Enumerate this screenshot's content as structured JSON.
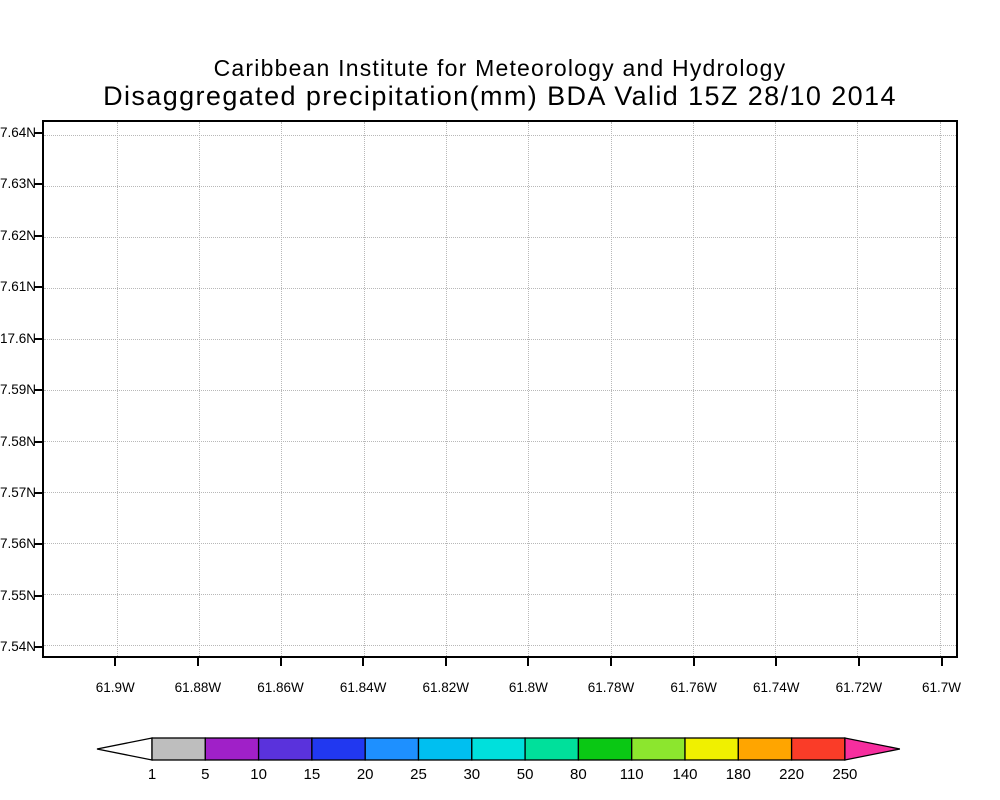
{
  "title": {
    "line1": "Caribbean Institute for Meteorology and Hydrology",
    "line2": "Disaggregated precipitation(mm) BDA Valid 15Z 28/10 2014"
  },
  "axes": {
    "y_tick_labels": [
      "7.64N",
      "7.63N",
      "7.62N",
      "7.61N",
      "17.6N",
      "7.59N",
      "7.58N",
      "7.57N",
      "7.56N",
      "7.55N",
      "7.54N"
    ],
    "x_tick_labels": [
      "61.9W",
      "61.88W",
      "61.86W",
      "61.84W",
      "61.82W",
      "61.8W",
      "61.78W",
      "61.76W",
      "61.74W",
      "61.72W",
      "61.7W"
    ]
  },
  "colorbar": {
    "boundary_labels": [
      "1",
      "5",
      "10",
      "15",
      "20",
      "25",
      "30",
      "50",
      "80",
      "110",
      "140",
      "180",
      "220",
      "250"
    ],
    "segment_colors": [
      "#bebebe",
      "#a020c8",
      "#5a32dc",
      "#2138f0",
      "#1e90ff",
      "#00bff0",
      "#00e0dc",
      "#00e09b",
      "#0ac814",
      "#8ce62e",
      "#f0f000",
      "#ffa500",
      "#fa3c28"
    ],
    "under_arrow_color": "#ffffff",
    "over_arrow_color": "#f62e9e",
    "outline_color": "#000000"
  },
  "chart_data": {
    "type": "heatmap",
    "title": "Disaggregated precipitation(mm) BDA Valid 15Z 28/10 2014",
    "institution": "Caribbean Institute for Meteorology and Hydrology",
    "x_tick_labels": [
      "61.9W",
      "61.88W",
      "61.86W",
      "61.84W",
      "61.82W",
      "61.8W",
      "61.78W",
      "61.76W",
      "61.74W",
      "61.72W",
      "61.7W"
    ],
    "y_tick_labels": [
      "7.64N",
      "7.63N",
      "7.62N",
      "7.61N",
      "17.6N",
      "7.59N",
      "7.58N",
      "7.57N",
      "7.56N",
      "7.55N",
      "7.54N"
    ],
    "colorbar_levels": [
      1,
      5,
      10,
      15,
      20,
      25,
      30,
      50,
      80,
      110,
      140,
      180,
      220,
      250
    ],
    "values": [],
    "grid": "dotted",
    "legend_position": "bottom"
  }
}
